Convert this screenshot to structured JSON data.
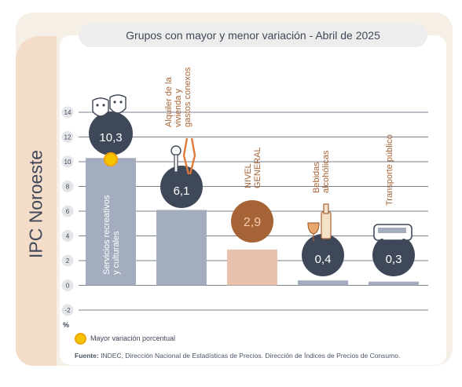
{
  "title": "IPC Noroeste",
  "header": "Grupos con mayor y menor variación - Abril de 2025",
  "legend": "Mayor variación porcentual",
  "source_label": "Fuente:",
  "source_text": "INDEC, Dirección Nacional de Estadísticas de Precios. Dirección de Índices de Precios de Consumo.",
  "unit": "%",
  "colors": {
    "bar": "#a4adbd",
    "general_bar": "#e9c2ad",
    "circle": "#3f4858",
    "general_circle": "#a66436",
    "highlight": "#f5c300"
  },
  "chart_data": {
    "type": "bar",
    "ylim": [
      -2,
      14
    ],
    "yticks": [
      "-2",
      "0",
      "2",
      "4",
      "6",
      "8",
      "10",
      "12",
      "14"
    ],
    "grid": true,
    "categories": [
      "Servicios recreativos y culturales",
      "Alquiler de la vivienda y gastos conexos",
      "NIVEL GENERAL",
      "Bebidas alcohólicas",
      "Transporte público"
    ],
    "values": [
      10.3,
      6.1,
      2.9,
      0.4,
      0.3
    ],
    "value_labels": [
      "10,3",
      "6,1",
      "2,9",
      "0,4",
      "0,3"
    ],
    "highlight": "Servicios recreativos y culturales",
    "icons": [
      "theater-masks-icon",
      "key-pliers-icon",
      "",
      "wine-bottle-glass-icon",
      "bus-icon"
    ]
  }
}
